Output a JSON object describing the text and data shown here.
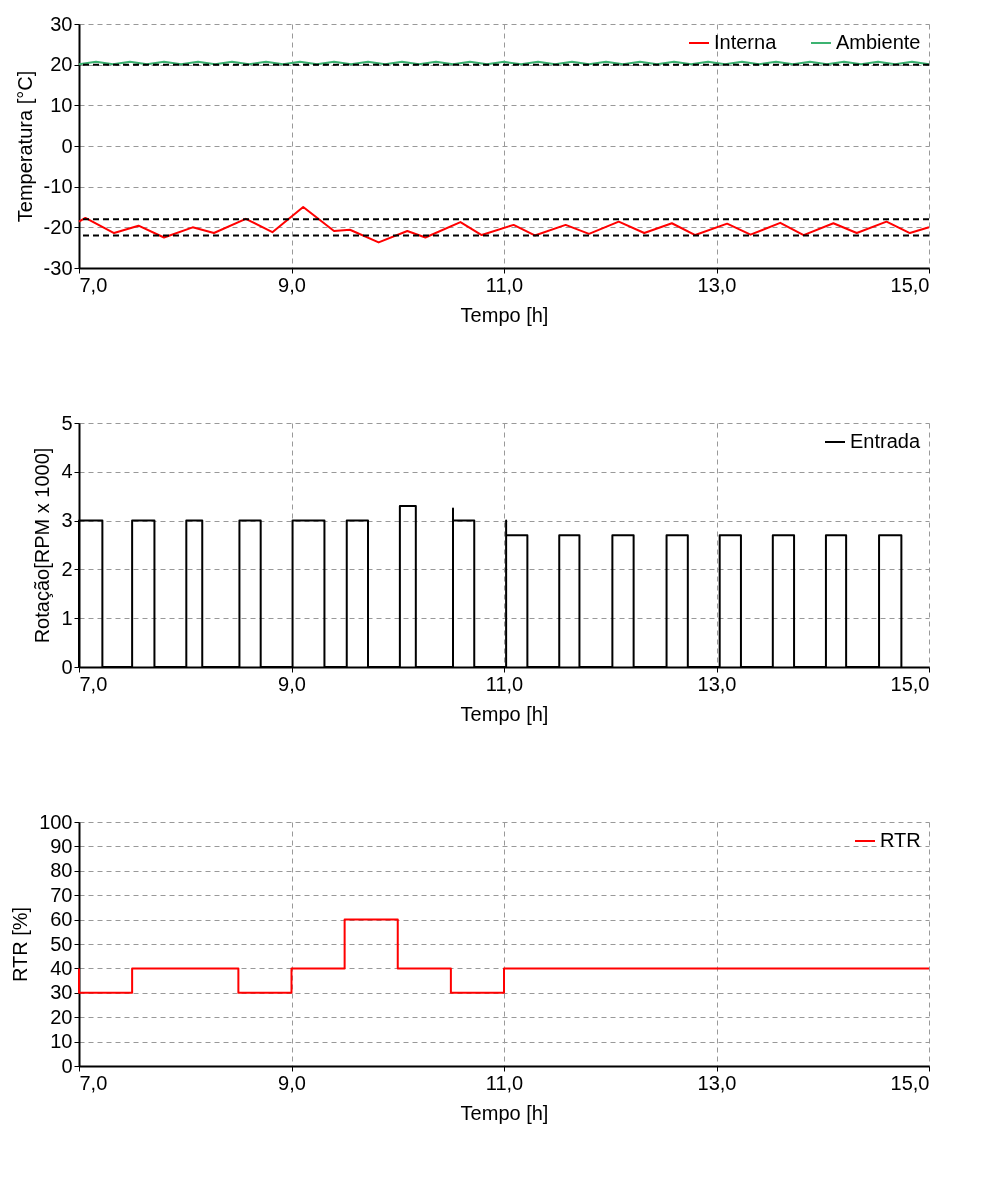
{
  "chart_data": [
    {
      "type": "line",
      "xlabel": "Tempo [h]",
      "ylabel": "Temperatura [°C]",
      "xlim": [
        7,
        15
      ],
      "xticks": [
        {
          "value": 7,
          "label": "7,0"
        },
        {
          "value": 9,
          "label": "9,0"
        },
        {
          "value": 11,
          "label": "11,0"
        },
        {
          "value": 13,
          "label": "13,0"
        },
        {
          "value": 15,
          "label": "15,0"
        }
      ],
      "ylim": [
        -30,
        30
      ],
      "yticks": [
        -30,
        -20,
        -10,
        0,
        10,
        20,
        30
      ],
      "grid": true,
      "legend": "top right",
      "ref_lines": [
        {
          "axis": "y",
          "value": 20,
          "color": "#000000",
          "line_style": "dashed"
        },
        {
          "axis": "y",
          "value": -18,
          "color": "#000000",
          "line_style": "dashed"
        },
        {
          "axis": "y",
          "value": -22,
          "color": "#000000",
          "line_style": "dashed"
        }
      ],
      "series": [
        {
          "name": "Interna",
          "color": "#ff0000",
          "x": [
            7.0,
            7.06,
            7.33,
            7.56,
            7.8,
            8.07,
            8.27,
            8.57,
            8.82,
            9.11,
            9.4,
            9.55,
            9.82,
            10.09,
            10.26,
            10.59,
            10.79,
            11.09,
            11.29,
            11.58,
            11.8,
            12.08,
            12.32,
            12.58,
            12.8,
            13.1,
            13.32,
            13.6,
            13.82,
            14.1,
            14.32,
            14.6,
            14.82,
            15.0
          ],
          "values": [
            -18.6,
            -17.7,
            -21.4,
            -19.6,
            -22.5,
            -20.0,
            -21.4,
            -17.9,
            -21.2,
            -15.0,
            -20.9,
            -20.6,
            -23.7,
            -20.9,
            -22.5,
            -18.7,
            -21.9,
            -19.4,
            -22.0,
            -19.4,
            -21.6,
            -18.6,
            -21.4,
            -19.0,
            -21.9,
            -19.1,
            -21.8,
            -18.9,
            -21.9,
            -19.0,
            -21.4,
            -18.6,
            -21.4,
            -20.0
          ]
        },
        {
          "name": "Ambiente",
          "color": "#3cb371",
          "x": [
            7.0,
            7.16,
            7.32,
            7.48,
            7.64,
            7.8,
            7.96,
            8.12,
            8.28,
            8.44,
            8.6,
            8.76,
            8.92,
            9.08,
            9.24,
            9.4,
            9.56,
            9.72,
            9.88,
            10.04,
            10.2,
            10.36,
            10.52,
            10.68,
            10.84,
            11.0,
            11.16,
            11.32,
            11.48,
            11.64,
            11.8,
            11.96,
            12.12,
            12.28,
            12.44,
            12.6,
            12.76,
            12.92,
            13.08,
            13.24,
            13.4,
            13.56,
            13.72,
            13.88,
            14.04,
            14.2,
            14.36,
            14.52,
            14.68,
            14.84,
            15.0
          ],
          "values": [
            20.1,
            20.7,
            20.1,
            20.7,
            20.1,
            20.7,
            20.1,
            20.7,
            20.1,
            20.7,
            20.1,
            20.7,
            20.1,
            20.7,
            20.1,
            20.7,
            20.1,
            20.7,
            20.1,
            20.7,
            20.1,
            20.7,
            20.1,
            20.7,
            20.1,
            20.7,
            20.1,
            20.7,
            20.1,
            20.7,
            20.1,
            20.7,
            20.1,
            20.7,
            20.1,
            20.7,
            20.1,
            20.7,
            20.1,
            20.7,
            20.1,
            20.7,
            20.1,
            20.7,
            20.1,
            20.7,
            20.1,
            20.7,
            20.1,
            20.7,
            20.1
          ]
        }
      ]
    },
    {
      "type": "line",
      "xlabel": "Tempo [h]",
      "ylabel": "Rotação[RPM x 1000]",
      "xlim": [
        7,
        15
      ],
      "xticks": [
        {
          "value": 7,
          "label": "7,0"
        },
        {
          "value": 9,
          "label": "9,0"
        },
        {
          "value": 11,
          "label": "11,0"
        },
        {
          "value": 13,
          "label": "13,0"
        },
        {
          "value": 15,
          "label": "15,0"
        }
      ],
      "ylim": [
        0,
        5
      ],
      "yticks": [
        0,
        1,
        2,
        3,
        4,
        5
      ],
      "grid": true,
      "legend": "top right",
      "series": [
        {
          "name": "Entrada",
          "color": "#000000",
          "x": [
            7.0,
            7.0,
            7.22,
            7.22,
            7.5,
            7.5,
            7.71,
            7.71,
            8.01,
            8.01,
            8.16,
            8.16,
            8.51,
            8.51,
            8.71,
            8.71,
            9.01,
            9.01,
            9.31,
            9.31,
            9.52,
            9.52,
            9.72,
            9.72,
            10.02,
            10.02,
            10.17,
            10.17,
            10.52,
            10.52,
            10.52,
            10.72,
            10.72,
            11.02,
            11.02,
            11.02,
            11.22,
            11.22,
            11.52,
            11.52,
            11.71,
            11.71,
            12.02,
            12.02,
            12.22,
            12.22,
            12.53,
            12.53,
            12.73,
            12.73,
            13.03,
            13.03,
            13.23,
            13.23,
            13.53,
            13.53,
            13.73,
            13.73,
            14.03,
            14.03,
            14.22,
            14.22,
            14.53,
            14.53,
            14.74,
            14.74
          ],
          "values": [
            0,
            3,
            3,
            0,
            0,
            3,
            3,
            0,
            0,
            3,
            3,
            0,
            0,
            3,
            3,
            0,
            0,
            3,
            3,
            0,
            0,
            3,
            3,
            0,
            0,
            3.3,
            3.3,
            0,
            0,
            3.25,
            3,
            3,
            0,
            0,
            3,
            2.7,
            2.7,
            0,
            0,
            2.7,
            2.7,
            0,
            0,
            2.7,
            2.7,
            0,
            0,
            2.7,
            2.7,
            0,
            0,
            2.7,
            2.7,
            0,
            0,
            2.7,
            2.7,
            0,
            0,
            2.7,
            2.7,
            0,
            0,
            2.7,
            2.7,
            0
          ]
        }
      ]
    },
    {
      "type": "step",
      "xlabel": "Tempo [h]",
      "ylabel": "RTR [%]",
      "xlim": [
        7,
        15
      ],
      "xticks": [
        {
          "value": 7,
          "label": "7,0"
        },
        {
          "value": 9,
          "label": "9,0"
        },
        {
          "value": 11,
          "label": "11,0"
        },
        {
          "value": 13,
          "label": "13,0"
        },
        {
          "value": 15,
          "label": "15,0"
        }
      ],
      "ylim": [
        0,
        100
      ],
      "yticks": [
        0,
        10,
        20,
        30,
        40,
        50,
        60,
        70,
        80,
        90,
        100
      ],
      "grid": true,
      "legend": "top right",
      "series": [
        {
          "name": "RTR",
          "color": "#ff0000",
          "x": [
            7.0,
            7.0,
            7.5,
            8.5,
            9.0,
            9.5,
            10.0,
            10.5,
            11.0,
            15.0
          ],
          "values": [
            40,
            30,
            40,
            30,
            40,
            60,
            40,
            30,
            40,
            40
          ]
        }
      ]
    }
  ]
}
